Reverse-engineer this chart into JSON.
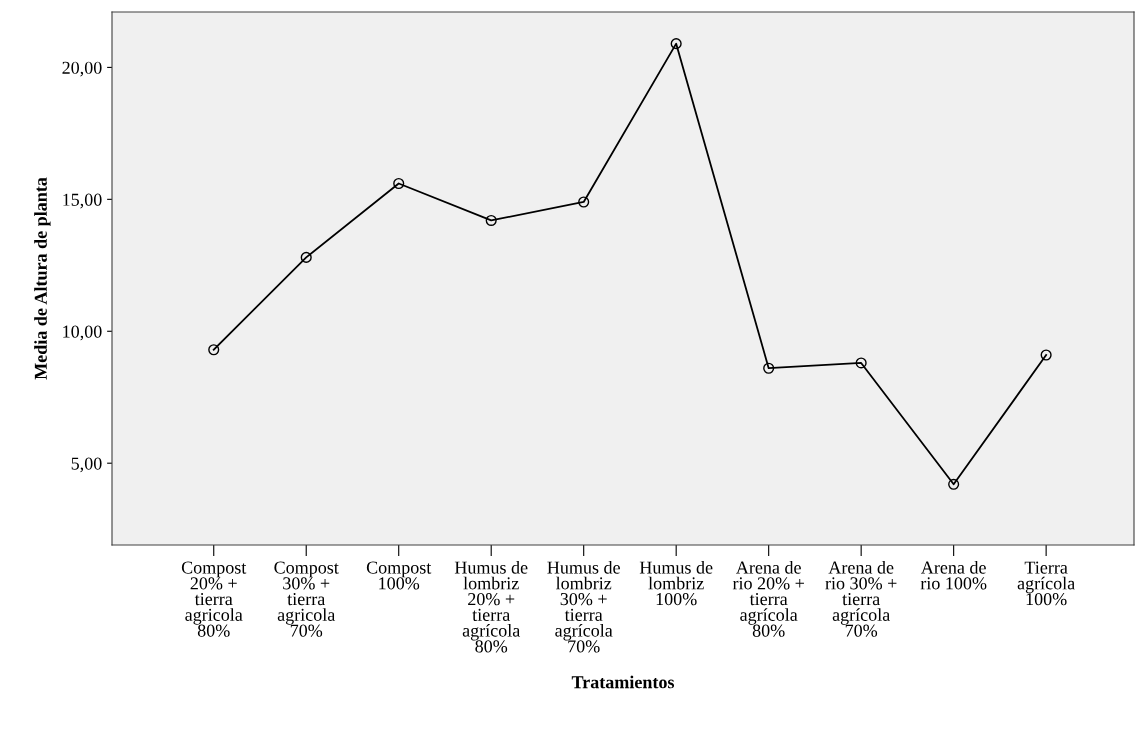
{
  "chart_data": {
    "type": "line",
    "xlabel": "Tratamientos",
    "ylabel": "Media de Altura de planta",
    "categories": [
      "Compost\n20% +\ntierra\nagricola\n80%",
      "Compost\n30% +\ntierra\nagricola\n70%",
      "Compost\n100%",
      "Humus de\nlombriz\n20% +\ntierra\nagrícola\n80%",
      "Humus de\nlombriz\n30% +\ntierra\nagrícola\n70%",
      "Humus de\nlombriz\n100%",
      "Arena de\nrio 20% +\ntierra\nagrícola\n80%",
      "Arena de\nrio 30% +\ntierra\nagrícola\n70%",
      "Arena de\nrio 100%",
      "Tierra\nagrícola\n100%"
    ],
    "series": [
      {
        "color": "#000000",
        "values": [
          9.3,
          12.8,
          15.6,
          14.2,
          14.9,
          20.9,
          8.6,
          8.8,
          4.2,
          9.1
        ]
      }
    ],
    "ylim": [
      1.9,
      22.1
    ],
    "yticks": [
      {
        "value": 5,
        "label": "5,00"
      },
      {
        "value": 10,
        "label": "10,00"
      },
      {
        "value": 15,
        "label": "15,00"
      },
      {
        "value": 20,
        "label": "20,00"
      }
    ],
    "marker": "circle",
    "line_style": "solid",
    "grid": false,
    "legend": false
  }
}
